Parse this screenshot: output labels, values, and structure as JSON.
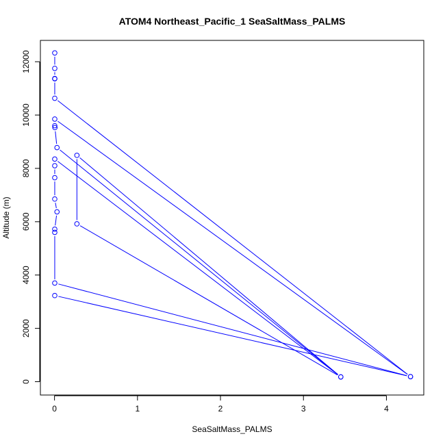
{
  "chart_data": {
    "type": "line",
    "title": "ATOM4 Northeast_Pacific_1 SeaSaltMass_PALMS",
    "xlabel": "SeaSaltMass_PALMS",
    "ylabel": "Altitude (m)",
    "xlim": [
      -0.17,
      4.45
    ],
    "ylim": [
      -500,
      12800
    ],
    "xticks": [
      0,
      1,
      2,
      3,
      4
    ],
    "yticks": [
      0,
      2000,
      4000,
      6000,
      8000,
      10000,
      12000
    ],
    "grid": false,
    "legend": "none",
    "series": [
      {
        "color": "#0000ff",
        "marker": "open-circle",
        "points": [
          {
            "x": 0.003,
            "y": 12330
          },
          {
            "x": 0.003,
            "y": 11750
          },
          {
            "x": 0.003,
            "y": 11370
          },
          {
            "x": 0.003,
            "y": 11360
          },
          {
            "x": 0.003,
            "y": 10630
          },
          {
            "x": 4.29,
            "y": 190
          },
          {
            "x": 0.003,
            "y": 9850
          },
          {
            "x": 0.003,
            "y": 9600
          },
          {
            "x": 0.005,
            "y": 9530
          },
          {
            "x": 0.03,
            "y": 8780
          },
          {
            "x": 3.45,
            "y": 180
          },
          {
            "x": 0.27,
            "y": 8490
          },
          {
            "x": 0.27,
            "y": 5920
          },
          {
            "x": 3.45,
            "y": 180
          },
          {
            "x": 0.003,
            "y": 8350
          },
          {
            "x": 0.003,
            "y": 8100
          },
          {
            "x": 0.003,
            "y": 7650
          },
          {
            "x": 0.003,
            "y": 6850
          },
          {
            "x": 0.03,
            "y": 6370
          },
          {
            "x": 0.003,
            "y": 5720
          },
          {
            "x": 0.003,
            "y": 5600
          },
          {
            "x": 0.003,
            "y": 3700
          },
          {
            "x": 4.29,
            "y": 190
          },
          {
            "x": 0.003,
            "y": 3230
          }
        ]
      }
    ]
  }
}
